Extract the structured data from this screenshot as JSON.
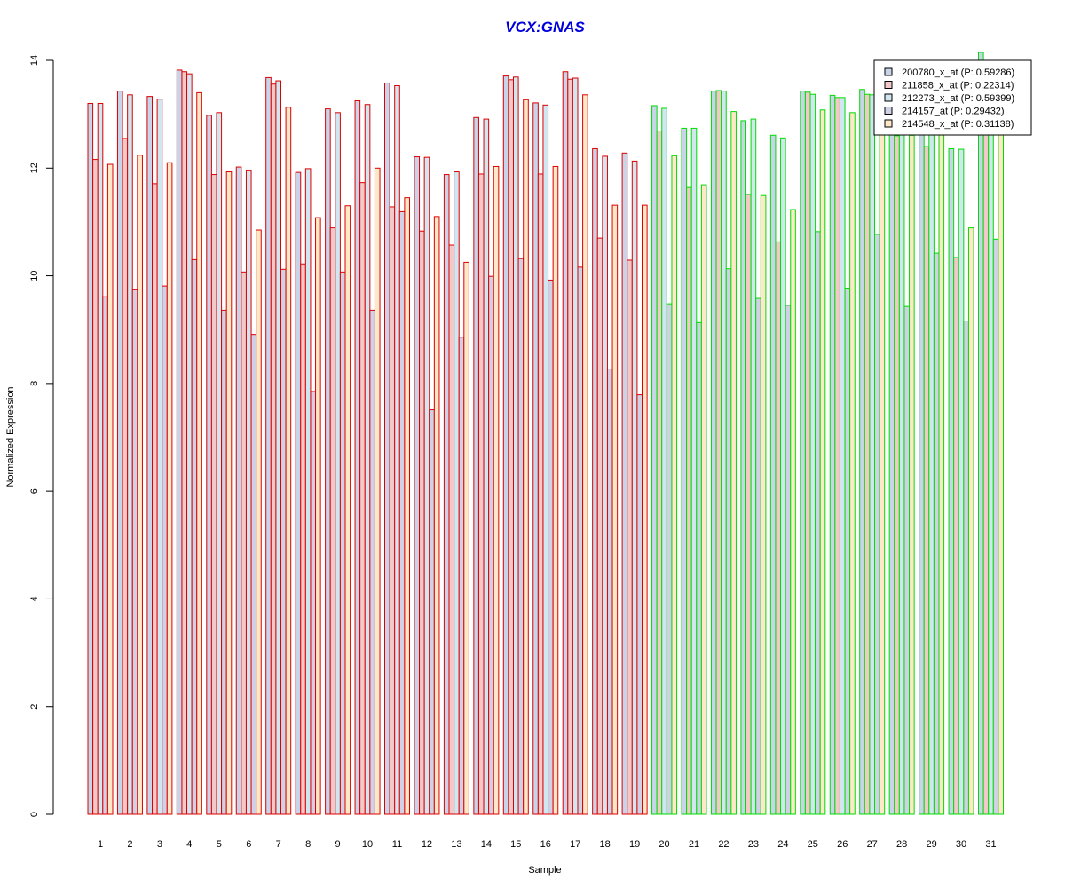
{
  "chart_data": {
    "type": "bar",
    "title": "VCX:GNAS",
    "xlabel": "Sample",
    "ylabel": "Normalized Expression",
    "ylim": [
      0,
      14
    ],
    "yticks": [
      0,
      2,
      4,
      6,
      8,
      10,
      12,
      14
    ],
    "grid": false,
    "legend_position": "top-right",
    "categories": [
      "1",
      "2",
      "3",
      "4",
      "5",
      "6",
      "7",
      "8",
      "9",
      "10",
      "11",
      "12",
      "13",
      "14",
      "15",
      "16",
      "17",
      "18",
      "19",
      "20",
      "21",
      "22",
      "23",
      "24",
      "25",
      "26",
      "27",
      "28",
      "29",
      "30",
      "31"
    ],
    "group_colors": [
      {
        "samples": "1-19",
        "border": "#dd0000",
        "fill": "#fff0f0"
      },
      {
        "samples": "20-31",
        "border": "#00dd00",
        "fill": "#e8ffe8"
      }
    ],
    "series": [
      {
        "name": "200780_x_at (P: 0.59286)",
        "fill": "#c7d4ea",
        "values": [
          13.2,
          13.43,
          13.33,
          13.82,
          12.98,
          12.02,
          13.68,
          11.92,
          13.1,
          13.25,
          13.58,
          12.21,
          11.88,
          12.94,
          13.71,
          13.21,
          13.79,
          12.36,
          12.28,
          13.16,
          12.74,
          13.43,
          12.88,
          12.61,
          13.43,
          13.35,
          13.46,
          12.84,
          12.9,
          12.36,
          14.15
        ]
      },
      {
        "name": "211858_x_at (P: 0.22314)",
        "fill": "#f2c8c8",
        "values": [
          12.16,
          12.55,
          11.71,
          13.79,
          11.88,
          10.07,
          13.56,
          10.22,
          10.89,
          11.73,
          11.28,
          10.83,
          10.57,
          11.89,
          13.64,
          11.89,
          13.65,
          10.7,
          10.29,
          12.69,
          11.64,
          13.44,
          11.51,
          10.63,
          13.41,
          13.31,
          13.37,
          12.6,
          12.4,
          10.34,
          12.97
        ]
      },
      {
        "name": "212273_x_at (P: 0.59399)",
        "fill": "#d0e6f0",
        "values": [
          13.2,
          13.36,
          13.28,
          13.75,
          13.03,
          11.95,
          13.62,
          11.99,
          13.03,
          13.18,
          13.53,
          12.2,
          11.93,
          12.91,
          13.69,
          13.17,
          13.67,
          12.22,
          12.13,
          13.11,
          12.74,
          13.43,
          12.91,
          12.56,
          13.37,
          13.31,
          13.36,
          12.88,
          12.84,
          12.35,
          13.46
        ]
      },
      {
        "name": "214157_at (P: 0.29432)",
        "fill": "#d0d0e6",
        "values": [
          9.61,
          9.74,
          9.81,
          10.3,
          9.36,
          8.91,
          10.12,
          7.85,
          10.07,
          9.36,
          11.19,
          7.51,
          8.86,
          9.99,
          10.32,
          9.92,
          10.16,
          8.27,
          7.79,
          9.48,
          9.13,
          10.13,
          9.58,
          9.45,
          10.82,
          9.77,
          10.77,
          9.43,
          10.42,
          9.16,
          10.68
        ]
      },
      {
        "name": "214548_x_at (P: 0.31138)",
        "fill": "#ffe8c8",
        "values": [
          12.07,
          12.24,
          12.1,
          13.4,
          11.93,
          10.85,
          13.13,
          11.08,
          11.3,
          12.0,
          11.45,
          11.1,
          10.25,
          12.03,
          13.27,
          12.03,
          13.36,
          11.31,
          11.31,
          12.23,
          11.69,
          13.05,
          11.49,
          11.23,
          13.08,
          13.03,
          12.84,
          12.61,
          12.9,
          10.89,
          12.62
        ]
      }
    ]
  }
}
